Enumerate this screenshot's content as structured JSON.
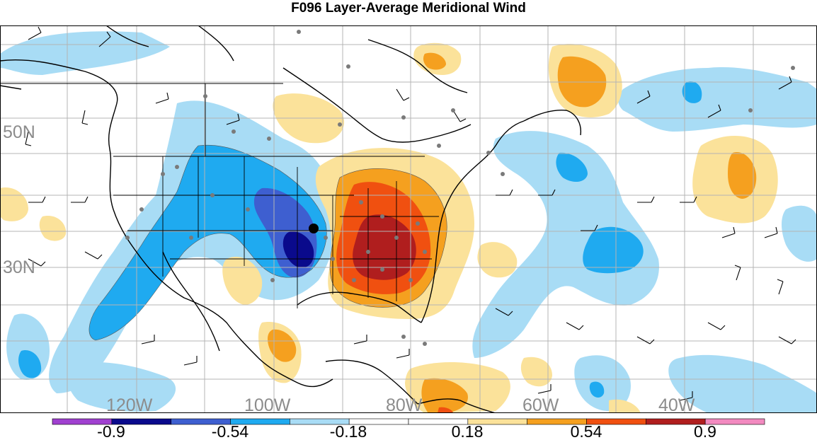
{
  "title": "F096 Layer-Average Meridional Wind",
  "latitude_labels": [
    "50N",
    "30N"
  ],
  "longitude_labels": [
    "120W",
    "100W",
    "80W",
    "60W",
    "40W"
  ],
  "colorbar": {
    "colors": [
      "#a040d0",
      "#0a0a8c",
      "#3e5fd0",
      "#1faaf0",
      "#a8dcf5",
      "#ffffff",
      "#ffffff",
      "#fbe29a",
      "#f5a01f",
      "#f05010",
      "#b01e1e",
      "#f28ac0"
    ],
    "tick_labels": [
      "-0.9",
      "-0.54",
      "-0.18",
      "0.18",
      "0.54",
      "0.9"
    ],
    "tick_values": [
      -0.9,
      -0.54,
      -0.18,
      0.18,
      0.54,
      0.9
    ]
  },
  "colors": {
    "light_blue": "#a8dcf5",
    "blue": "#1faaf0",
    "mid_blue": "#3e5fd0",
    "dark_blue": "#0a0a8c",
    "light_yellow": "#fbe29a",
    "orange": "#f5a01f",
    "red_orange": "#f05010",
    "dark_red": "#b01e1e",
    "grid": "#b4b4b4",
    "coast": "#000000",
    "station": "#7a7a7a"
  }
}
